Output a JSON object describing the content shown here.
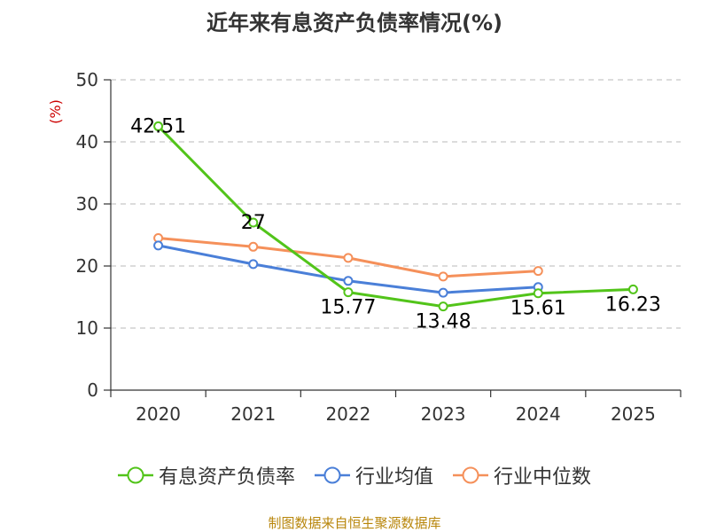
{
  "chart_data": {
    "type": "line",
    "title": "近年来有息资产负债率情况(%)",
    "ylabel": "(%)",
    "xlabel": "",
    "categories": [
      "2020",
      "2021",
      "2022",
      "2023",
      "2024",
      "2025"
    ],
    "ylim": [
      0,
      50
    ],
    "yticks": [
      0,
      10,
      20,
      30,
      40,
      50
    ],
    "grid": true,
    "legend_position": "bottom",
    "series": [
      {
        "name": "有息资产负债率",
        "color": "#52c41a",
        "values": [
          42.51,
          27,
          15.77,
          13.48,
          15.61,
          16.23
        ],
        "labels": [
          "42.51",
          "27",
          "15.77",
          "13.48",
          "15.61",
          "16.23"
        ]
      },
      {
        "name": "行业均值",
        "color": "#4a7fd8",
        "values": [
          23.3,
          20.3,
          17.6,
          15.7,
          16.6,
          null
        ]
      },
      {
        "name": "行业中位数",
        "color": "#f5905a",
        "values": [
          24.5,
          23.1,
          21.3,
          18.3,
          19.2,
          null
        ]
      }
    ],
    "source": "制图数据来自恒生聚源数据库"
  }
}
